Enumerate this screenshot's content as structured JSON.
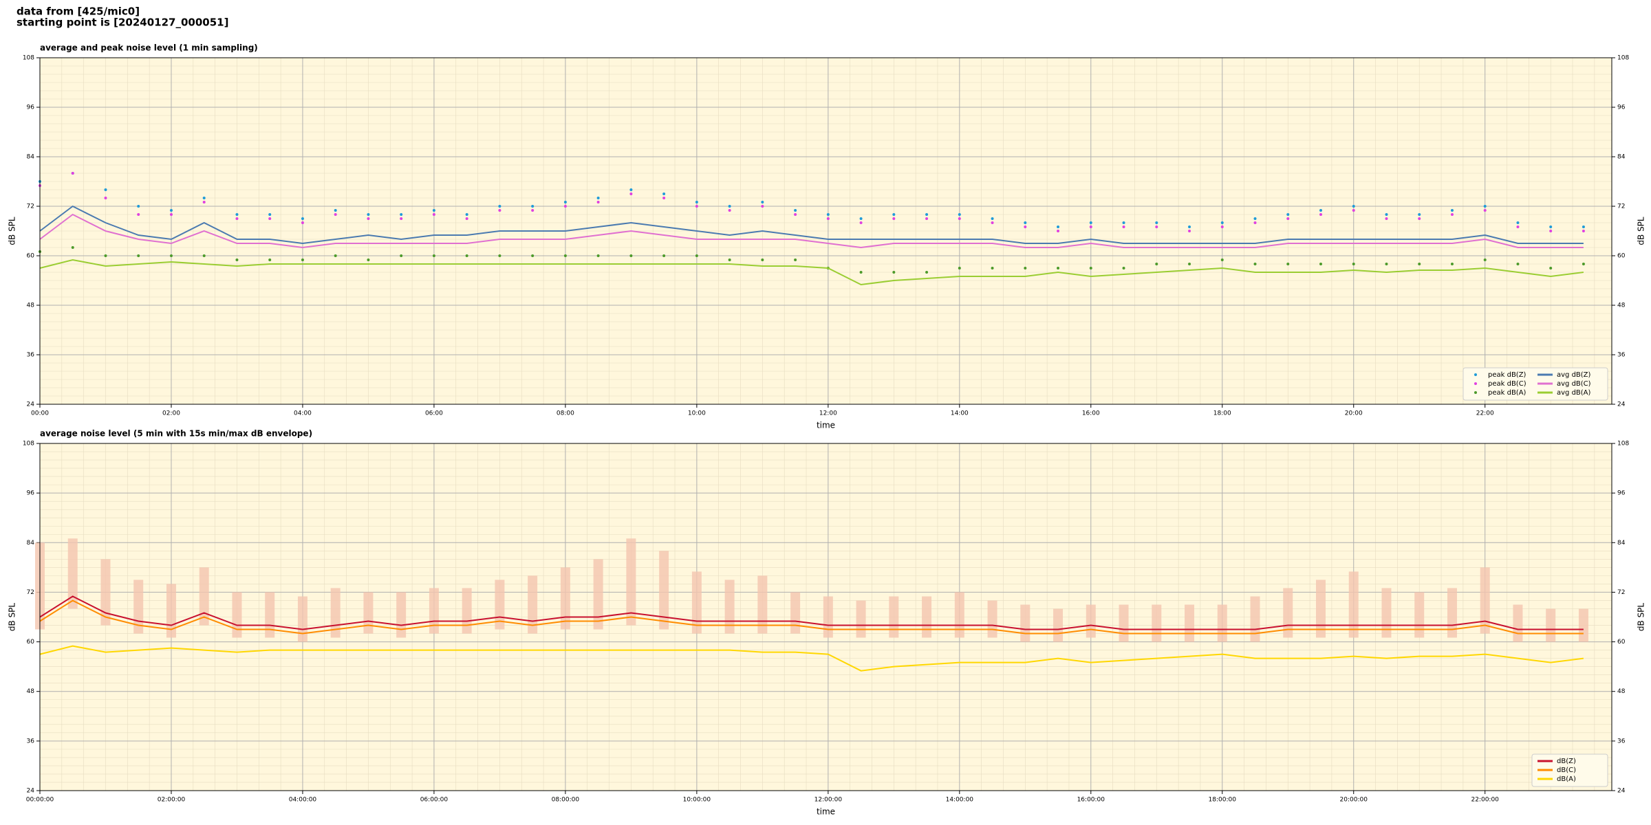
{
  "suptitle": [
    "data from [425/mic0]",
    "starting point is [20240127_000051]"
  ],
  "chart_data": [
    {
      "type": "line",
      "title": "average and peak noise level (1 min sampling)",
      "xlabel": "time",
      "ylabel": "dB SPL",
      "facecolor": "#fff7dc",
      "grid": true,
      "legend": "lower right",
      "legend_columns": 2,
      "xlim": [
        0,
        23.93
      ],
      "ylim": [
        24,
        108
      ],
      "yticks": [
        24,
        36,
        48,
        60,
        72,
        84,
        96,
        108
      ],
      "xticks": [
        {
          "value": 0,
          "label": "00:00"
        },
        {
          "value": 2,
          "label": "02:00"
        },
        {
          "value": 4,
          "label": "04:00"
        },
        {
          "value": 6,
          "label": "06:00"
        },
        {
          "value": 8,
          "label": "08:00"
        },
        {
          "value": 10,
          "label": "10:00"
        },
        {
          "value": 12,
          "label": "12:00"
        },
        {
          "value": 14,
          "label": "14:00"
        },
        {
          "value": 16,
          "label": "16:00"
        },
        {
          "value": 18,
          "label": "18:00"
        },
        {
          "value": 20,
          "label": "20:00"
        },
        {
          "value": 22,
          "label": "22:00"
        }
      ],
      "x": [
        0,
        0.5,
        1,
        1.5,
        2,
        2.5,
        3,
        3.5,
        4,
        4.5,
        5,
        5.5,
        6,
        6.5,
        7,
        7.5,
        8,
        8.5,
        9,
        9.5,
        10,
        10.5,
        11,
        11.5,
        12,
        12.5,
        13,
        13.5,
        14,
        14.5,
        15,
        15.5,
        16,
        16.5,
        17,
        17.5,
        18,
        18.5,
        19,
        19.5,
        20,
        20.5,
        21,
        21.5,
        22,
        22.5,
        23,
        23.5
      ],
      "series": [
        {
          "name": "peak dB(Z)",
          "type": "scatter",
          "color": "#1f9bd8",
          "values": [
            78,
            80,
            76,
            72,
            71,
            74,
            70,
            70,
            69,
            71,
            70,
            70,
            71,
            70,
            72,
            72,
            73,
            74,
            76,
            75,
            73,
            72,
            73,
            71,
            70,
            69,
            70,
            70,
            70,
            69,
            68,
            67,
            68,
            68,
            68,
            67,
            68,
            69,
            70,
            71,
            72,
            70,
            70,
            71,
            72,
            68,
            67,
            67
          ]
        },
        {
          "name": "peak dB(C)",
          "type": "scatter",
          "color": "#e040e0",
          "values": [
            77,
            80,
            74,
            70,
            70,
            73,
            69,
            69,
            68,
            70,
            69,
            69,
            70,
            69,
            71,
            71,
            72,
            73,
            75,
            74,
            72,
            71,
            72,
            70,
            69,
            68,
            69,
            69,
            69,
            68,
            67,
            66,
            67,
            67,
            67,
            66,
            67,
            68,
            69,
            70,
            71,
            69,
            69,
            70,
            71,
            67,
            66,
            66
          ]
        },
        {
          "name": "peak dB(A)",
          "type": "scatter",
          "color": "#4c9a2a",
          "values": [
            61,
            62,
            60,
            60,
            60,
            60,
            59,
            59,
            59,
            60,
            59,
            60,
            60,
            60,
            60,
            60,
            60,
            60,
            60,
            60,
            60,
            59,
            59,
            59,
            57,
            56,
            56,
            56,
            57,
            57,
            57,
            57,
            57,
            57,
            58,
            58,
            59,
            58,
            58,
            58,
            58,
            58,
            58,
            58,
            59,
            58,
            57,
            58
          ]
        },
        {
          "name": "avg dB(Z)",
          "type": "line",
          "color": "#4a7ab0",
          "values": [
            66,
            72,
            68,
            65,
            64,
            68,
            64,
            64,
            63,
            64,
            65,
            64,
            65,
            65,
            66,
            66,
            66,
            67,
            68,
            67,
            66,
            65,
            66,
            65,
            64,
            64,
            64,
            64,
            64,
            64,
            63,
            63,
            64,
            63,
            63,
            63,
            63,
            63,
            64,
            64,
            64,
            64,
            64,
            64,
            65,
            63,
            63,
            63
          ]
        },
        {
          "name": "avg dB(C)",
          "type": "line",
          "color": "#e070d0",
          "values": [
            64,
            70,
            66,
            64,
            63,
            66,
            63,
            63,
            62,
            63,
            63,
            63,
            63,
            63,
            64,
            64,
            64,
            65,
            66,
            65,
            64,
            64,
            64,
            64,
            63,
            62,
            63,
            63,
            63,
            63,
            62,
            62,
            63,
            62,
            62,
            62,
            62,
            62,
            63,
            63,
            63,
            63,
            63,
            63,
            64,
            62,
            62,
            62
          ]
        },
        {
          "name": "avg dB(A)",
          "type": "line",
          "color": "#9acd32",
          "values": [
            57,
            59,
            57.5,
            58,
            58.5,
            58,
            57.5,
            58,
            58,
            58,
            58,
            58,
            58,
            58,
            58,
            58,
            58,
            58,
            58,
            58,
            58,
            58,
            57.5,
            57.5,
            57,
            53,
            54,
            54.5,
            55,
            55,
            55,
            56,
            55,
            55.5,
            56,
            56.5,
            57,
            56,
            56,
            56,
            56.5,
            56,
            56.5,
            56.5,
            57,
            56,
            55,
            56
          ]
        }
      ]
    },
    {
      "type": "line",
      "title": "average noise level (5 min with 15s min/max dB envelope)",
      "xlabel": "time",
      "ylabel": "dB SPL",
      "facecolor": "#fff7dc",
      "grid": true,
      "legend": "lower right",
      "legend_columns": 1,
      "xlim": [
        0,
        23.93
      ],
      "ylim": [
        24,
        108
      ],
      "yticks": [
        24,
        36,
        48,
        60,
        72,
        84,
        96,
        108
      ],
      "xticks": [
        {
          "value": 0,
          "label": "00:00:00"
        },
        {
          "value": 2,
          "label": "02:00:00"
        },
        {
          "value": 4,
          "label": "04:00:00"
        },
        {
          "value": 6,
          "label": "06:00:00"
        },
        {
          "value": 8,
          "label": "08:00:00"
        },
        {
          "value": 10,
          "label": "10:00:00"
        },
        {
          "value": 12,
          "label": "12:00:00"
        },
        {
          "value": 14,
          "label": "14:00:00"
        },
        {
          "value": 16,
          "label": "16:00:00"
        },
        {
          "value": 18,
          "label": "18:00:00"
        },
        {
          "value": 20,
          "label": "20:00:00"
        },
        {
          "value": 22,
          "label": "22:00:00"
        }
      ],
      "x": [
        0,
        0.5,
        1,
        1.5,
        2,
        2.5,
        3,
        3.5,
        4,
        4.5,
        5,
        5.5,
        6,
        6.5,
        7,
        7.5,
        8,
        8.5,
        9,
        9.5,
        10,
        10.5,
        11,
        11.5,
        12,
        12.5,
        13,
        13.5,
        14,
        14.5,
        15,
        15.5,
        16,
        16.5,
        17,
        17.5,
        18,
        18.5,
        19,
        19.5,
        20,
        20.5,
        21,
        21.5,
        22,
        22.5,
        23,
        23.5
      ],
      "band": {
        "color": "#f5c6b0",
        "low": [
          63,
          68,
          64,
          62,
          61,
          64,
          61,
          61,
          60,
          61,
          62,
          61,
          62,
          62,
          63,
          62,
          63,
          63,
          64,
          63,
          62,
          62,
          62,
          62,
          61,
          61,
          61,
          61,
          61,
          61,
          60,
          60,
          61,
          60,
          60,
          60,
          60,
          60,
          61,
          61,
          61,
          61,
          61,
          61,
          62,
          60,
          60,
          60
        ],
        "high": [
          84,
          85,
          80,
          75,
          74,
          78,
          72,
          72,
          71,
          73,
          72,
          72,
          73,
          73,
          75,
          76,
          78,
          80,
          85,
          82,
          77,
          75,
          76,
          72,
          71,
          70,
          71,
          71,
          72,
          70,
          69,
          68,
          69,
          69,
          69,
          69,
          69,
          71,
          73,
          75,
          77,
          73,
          72,
          73,
          78,
          69,
          68,
          68
        ]
      },
      "series": [
        {
          "name": "dB(Z)",
          "type": "line",
          "color": "#c8102e",
          "values": [
            66,
            71,
            67,
            65,
            64,
            67,
            64,
            64,
            63,
            64,
            65,
            64,
            65,
            65,
            66,
            65,
            66,
            66,
            67,
            66,
            65,
            65,
            65,
            65,
            64,
            64,
            64,
            64,
            64,
            64,
            63,
            63,
            64,
            63,
            63,
            63,
            63,
            63,
            64,
            64,
            64,
            64,
            64,
            64,
            65,
            63,
            63,
            63
          ]
        },
        {
          "name": "dB(C)",
          "type": "line",
          "color": "#ff8c00",
          "values": [
            65,
            70,
            66,
            64,
            63,
            66,
            63,
            63,
            62,
            63,
            64,
            63,
            64,
            64,
            65,
            64,
            65,
            65,
            66,
            65,
            64,
            64,
            64,
            64,
            63,
            63,
            63,
            63,
            63,
            63,
            62,
            62,
            63,
            62,
            62,
            62,
            62,
            62,
            63,
            63,
            63,
            63,
            63,
            63,
            64,
            62,
            62,
            62
          ]
        },
        {
          "name": "dB(A)",
          "type": "line",
          "color": "#ffd700",
          "values": [
            57,
            59,
            57.5,
            58,
            58.5,
            58,
            57.5,
            58,
            58,
            58,
            58,
            58,
            58,
            58,
            58,
            58,
            58,
            58,
            58,
            58,
            58,
            58,
            57.5,
            57.5,
            57,
            53,
            54,
            54.5,
            55,
            55,
            55,
            56,
            55,
            55.5,
            56,
            56.5,
            57,
            56,
            56,
            56,
            56.5,
            56,
            56.5,
            56.5,
            57,
            56,
            55,
            56
          ]
        }
      ]
    }
  ]
}
